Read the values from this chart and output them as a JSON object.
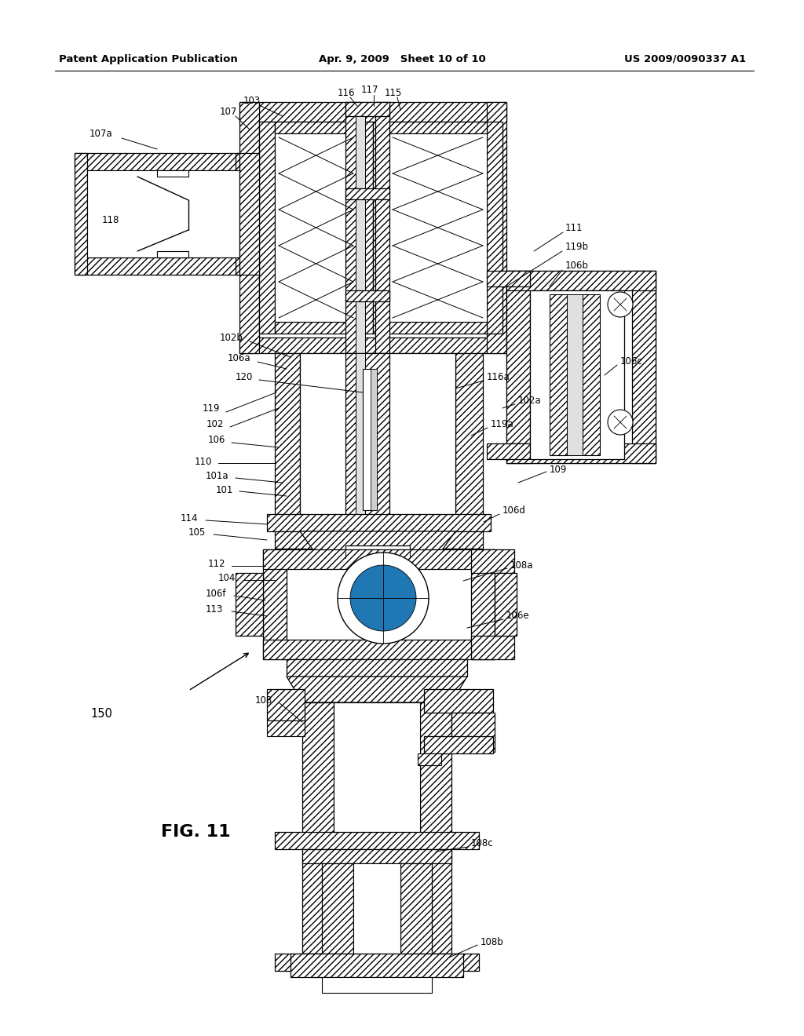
{
  "header_left": "Patent Application Publication",
  "header_center": "Apr. 9, 2009   Sheet 10 of 10",
  "header_right": "US 2009/0090337 A1",
  "figure_label": "FIG. 11",
  "bg_color": "#ffffff"
}
